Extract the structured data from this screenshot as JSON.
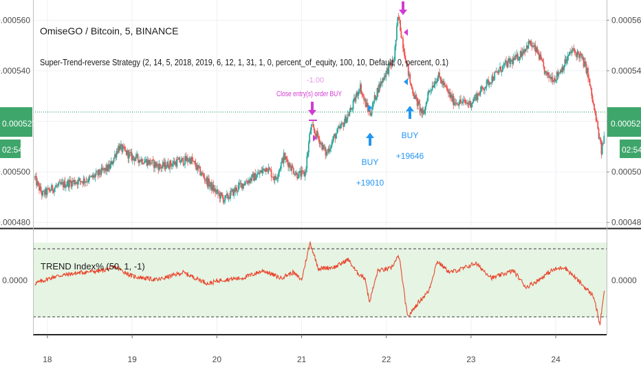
{
  "header": {
    "symbol_line": "OmiseGO / Bitcoin, 5, BINANCE",
    "strategy_line": "Super-Trend-reverse Strategy (2, 14, 5, 2018, 2019, 6, 12, 1, 31, 1, 0, percent_of_equity, 100, 10, Default, 0, percent, 0.1)"
  },
  "indicator": {
    "title": "TREND Index% (50, 1, -1)"
  },
  "price_axis": {
    "ticks": [
      "0.000560",
      "0.000540",
      "0.000520",
      "0.000500",
      "0.000480"
    ],
    "tick_values": [
      0.00056,
      0.00054,
      0.00052,
      0.0005,
      0.00048
    ],
    "ylim": [
      0.000478,
      0.000568
    ],
    "last_price": "0.000520",
    "countdown": "02:54"
  },
  "indicator_axis": {
    "label": "0.0000",
    "ylim": [
      -1.45,
      1.35
    ],
    "upper": 1,
    "lower": -1
  },
  "time_axis": {
    "labels": [
      "18",
      "19",
      "20",
      "21",
      "22",
      "23",
      "24"
    ]
  },
  "signals": {
    "close_label": "Close entry(s) order BUY",
    "faint_label": "-1.00",
    "buy1": {
      "label": "BUY",
      "amount": "+19010"
    },
    "buy2": {
      "label": "BUY",
      "amount": "+19646"
    }
  },
  "colors": {
    "up_candle": "#26a69a",
    "down_candle": "#ef5350",
    "indicator_line": "#e8452c",
    "band_fill": "#e6f4e3",
    "last_price_badge": "#3fa66b",
    "buy_signal": "#2196f3",
    "close_signal": "#d13cd1"
  },
  "chart_data": {
    "type": "candlestick",
    "x_unit": "day of month",
    "price_path": [
      [
        17.85,
        0.000498
      ],
      [
        17.95,
        0.000491
      ],
      [
        18.1,
        0.000494
      ],
      [
        18.3,
        0.000496
      ],
      [
        18.5,
        0.000497
      ],
      [
        18.75,
        0.000502
      ],
      [
        18.85,
        0.00051
      ],
      [
        19.0,
        0.000506
      ],
      [
        19.2,
        0.000504
      ],
      [
        19.35,
        0.000502
      ],
      [
        19.55,
        0.000504
      ],
      [
        19.7,
        0.000505
      ],
      [
        19.9,
        0.000496
      ],
      [
        20.0,
        0.000492
      ],
      [
        20.1,
        0.000489
      ],
      [
        20.3,
        0.000495
      ],
      [
        20.5,
        0.000499
      ],
      [
        20.6,
        0.000502
      ],
      [
        20.7,
        0.000497
      ],
      [
        20.8,
        0.000506
      ],
      [
        20.95,
        0.000499
      ],
      [
        21.05,
        0.000499
      ],
      [
        21.12,
        0.000518
      ],
      [
        21.2,
        0.000514
      ],
      [
        21.3,
        0.000507
      ],
      [
        21.4,
        0.000514
      ],
      [
        21.5,
        0.000519
      ],
      [
        21.6,
        0.000525
      ],
      [
        21.7,
        0.000534
      ],
      [
        21.75,
        0.000528
      ],
      [
        21.82,
        0.000523
      ],
      [
        21.9,
        0.000532
      ],
      [
        22.0,
        0.000539
      ],
      [
        22.1,
        0.000544
      ],
      [
        22.15,
        0.000562
      ],
      [
        22.22,
        0.000548
      ],
      [
        22.3,
        0.000534
      ],
      [
        22.38,
        0.000527
      ],
      [
        22.45,
        0.000522
      ],
      [
        22.5,
        0.000531
      ],
      [
        22.62,
        0.000538
      ],
      [
        22.8,
        0.000528
      ],
      [
        23.0,
        0.000527
      ],
      [
        23.2,
        0.000535
      ],
      [
        23.4,
        0.000542
      ],
      [
        23.55,
        0.000545
      ],
      [
        23.7,
        0.000551
      ],
      [
        23.8,
        0.000547
      ],
      [
        23.9,
        0.000538
      ],
      [
        24.0,
        0.000537
      ],
      [
        24.1,
        0.000542
      ],
      [
        24.2,
        0.000548
      ],
      [
        24.3,
        0.000546
      ],
      [
        24.38,
        0.00054
      ],
      [
        24.45,
        0.000527
      ],
      [
        24.5,
        0.000518
      ],
      [
        24.55,
        0.000508
      ],
      [
        24.58,
        0.000514
      ]
    ],
    "trend_index_path": [
      [
        17.85,
        -0.1
      ],
      [
        18.1,
        0.1
      ],
      [
        18.4,
        0.2
      ],
      [
        18.65,
        0.25
      ],
      [
        18.8,
        0.35
      ],
      [
        19.0,
        0.1
      ],
      [
        19.3,
        0.0
      ],
      [
        19.6,
        0.2
      ],
      [
        19.9,
        -0.1
      ],
      [
        20.05,
        0.0
      ],
      [
        20.3,
        0.05
      ],
      [
        20.55,
        0.25
      ],
      [
        20.75,
        0.05
      ],
      [
        20.9,
        0.2
      ],
      [
        21.0,
        0.0
      ],
      [
        21.1,
        1.0
      ],
      [
        21.2,
        0.3
      ],
      [
        21.4,
        0.35
      ],
      [
        21.55,
        0.55
      ],
      [
        21.65,
        0.2
      ],
      [
        21.75,
        0.05
      ],
      [
        21.8,
        -0.6
      ],
      [
        21.9,
        0.25
      ],
      [
        22.05,
        0.3
      ],
      [
        22.15,
        0.65
      ],
      [
        22.25,
        -1.0
      ],
      [
        22.38,
        -0.6
      ],
      [
        22.5,
        -0.3
      ],
      [
        22.6,
        0.5
      ],
      [
        22.75,
        0.2
      ],
      [
        22.9,
        0.3
      ],
      [
        23.05,
        0.45
      ],
      [
        23.25,
        0.05
      ],
      [
        23.5,
        0.25
      ],
      [
        23.65,
        -0.2
      ],
      [
        23.8,
        0.0
      ],
      [
        23.95,
        0.25
      ],
      [
        24.1,
        0.35
      ],
      [
        24.3,
        -0.1
      ],
      [
        24.45,
        -0.45
      ],
      [
        24.52,
        -1.2
      ],
      [
        24.58,
        -0.2
      ]
    ],
    "signals": [
      {
        "type": "close",
        "x": 21.1,
        "price": 0.000524
      },
      {
        "type": "buy",
        "x": 21.8,
        "price": 0.00052,
        "label": "BUY",
        "amount": "+19010"
      },
      {
        "type": "buy",
        "x": 22.25,
        "price": 0.000523,
        "label": "BUY",
        "amount": "+19646"
      }
    ]
  }
}
